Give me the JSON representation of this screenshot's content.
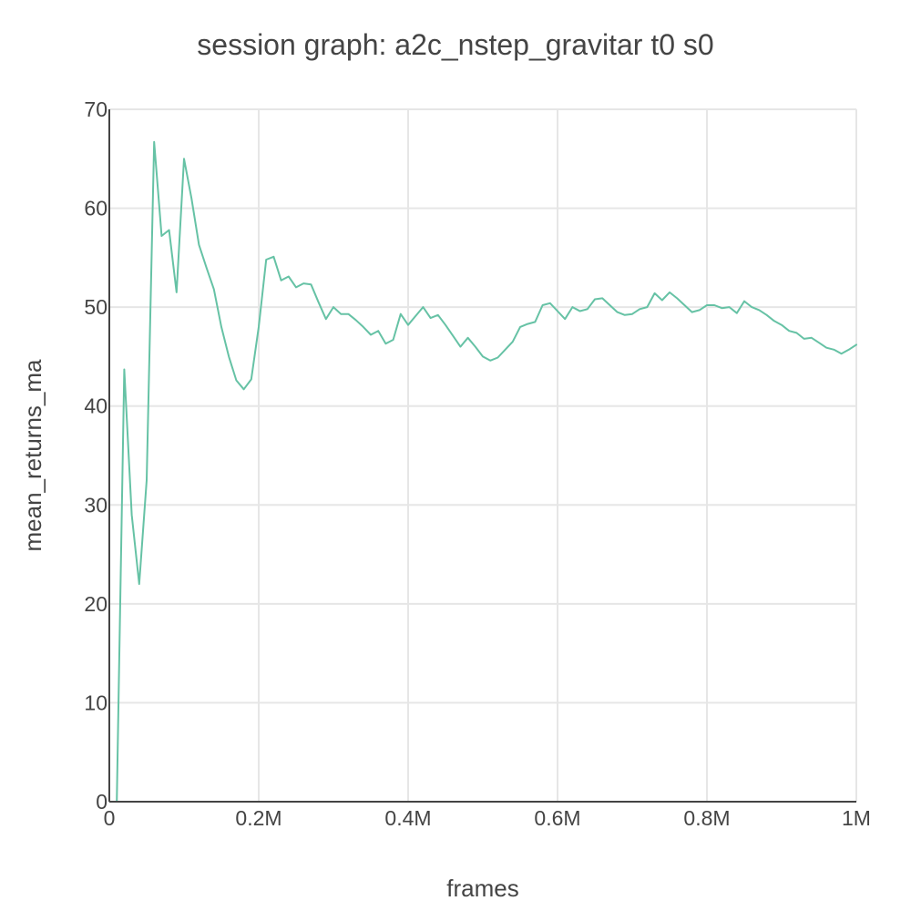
{
  "chart_data": {
    "type": "line",
    "title": "session graph: a2c_nstep_gravitar t0 s0",
    "xlabel": "frames",
    "ylabel": "mean_returns_ma",
    "xlim": [
      0,
      1000000
    ],
    "ylim": [
      0,
      70
    ],
    "x_ticks": [
      0,
      200000,
      400000,
      600000,
      800000,
      1000000
    ],
    "x_tick_labels": [
      "0",
      "0.2M",
      "0.4M",
      "0.6M",
      "0.8M",
      "1M"
    ],
    "y_ticks": [
      0,
      10,
      20,
      30,
      40,
      50,
      60,
      70
    ],
    "y_tick_labels": [
      "0",
      "10",
      "20",
      "30",
      "40",
      "50",
      "60",
      "70"
    ],
    "grid": true,
    "legend": "none",
    "colors": {
      "series": "#66c2a5",
      "axis": "#444444",
      "grid": "#e6e6e6"
    },
    "series": [
      {
        "x": [
          10000,
          20000,
          30000,
          40000,
          50000,
          60000,
          70000,
          80000,
          90000,
          100000,
          110000,
          120000,
          130000,
          140000,
          150000,
          160000,
          170000,
          180000,
          190000,
          200000,
          210000,
          220000,
          230000,
          240000,
          250000,
          260000,
          270000,
          280000,
          290000,
          300000,
          310000,
          320000,
          330000,
          340000,
          350000,
          360000,
          370000,
          380000,
          390000,
          400000,
          410000,
          420000,
          430000,
          440000,
          450000,
          460000,
          470000,
          480000,
          490000,
          500000,
          510000,
          520000,
          530000,
          540000,
          550000,
          560000,
          570000,
          580000,
          590000,
          600000,
          610000,
          620000,
          630000,
          640000,
          650000,
          660000,
          670000,
          680000,
          690000,
          700000,
          710000,
          720000,
          730000,
          740000,
          750000,
          760000,
          770000,
          780000,
          790000,
          800000,
          810000,
          820000,
          830000,
          840000,
          850000,
          860000,
          870000,
          880000,
          890000,
          900000,
          910000,
          920000,
          930000,
          940000,
          950000,
          960000,
          970000,
          980000,
          990000,
          1000000
        ],
        "values": [
          0.0,
          43.7,
          29.0,
          22.0,
          32.5,
          66.7,
          57.2,
          57.8,
          51.5,
          65.0,
          61.0,
          56.3,
          54.0,
          51.8,
          48.0,
          45.0,
          42.6,
          41.7,
          42.7,
          48.0,
          54.8,
          55.1,
          52.7,
          53.1,
          52.0,
          52.4,
          52.3,
          50.5,
          48.8,
          50.0,
          49.3,
          49.3,
          48.7,
          48.0,
          47.2,
          47.6,
          46.3,
          46.7,
          49.3,
          48.2,
          49.1,
          50.0,
          48.9,
          49.2,
          48.2,
          47.1,
          46.0,
          46.9,
          46.0,
          45.0,
          44.6,
          44.9,
          45.7,
          46.5,
          48.0,
          48.3,
          48.5,
          50.2,
          50.4,
          49.6,
          48.8,
          50.0,
          49.6,
          49.8,
          50.8,
          50.9,
          50.2,
          49.5,
          49.2,
          49.3,
          49.8,
          50.0,
          51.4,
          50.7,
          51.5,
          50.9,
          50.2,
          49.5,
          49.7,
          50.2,
          50.2,
          49.9,
          50.0,
          49.4,
          50.6,
          50.0,
          49.7,
          49.2,
          48.6,
          48.2,
          47.6,
          47.4,
          46.8,
          46.9,
          46.4,
          45.9,
          45.7,
          45.3,
          45.7,
          46.2
        ]
      }
    ]
  }
}
